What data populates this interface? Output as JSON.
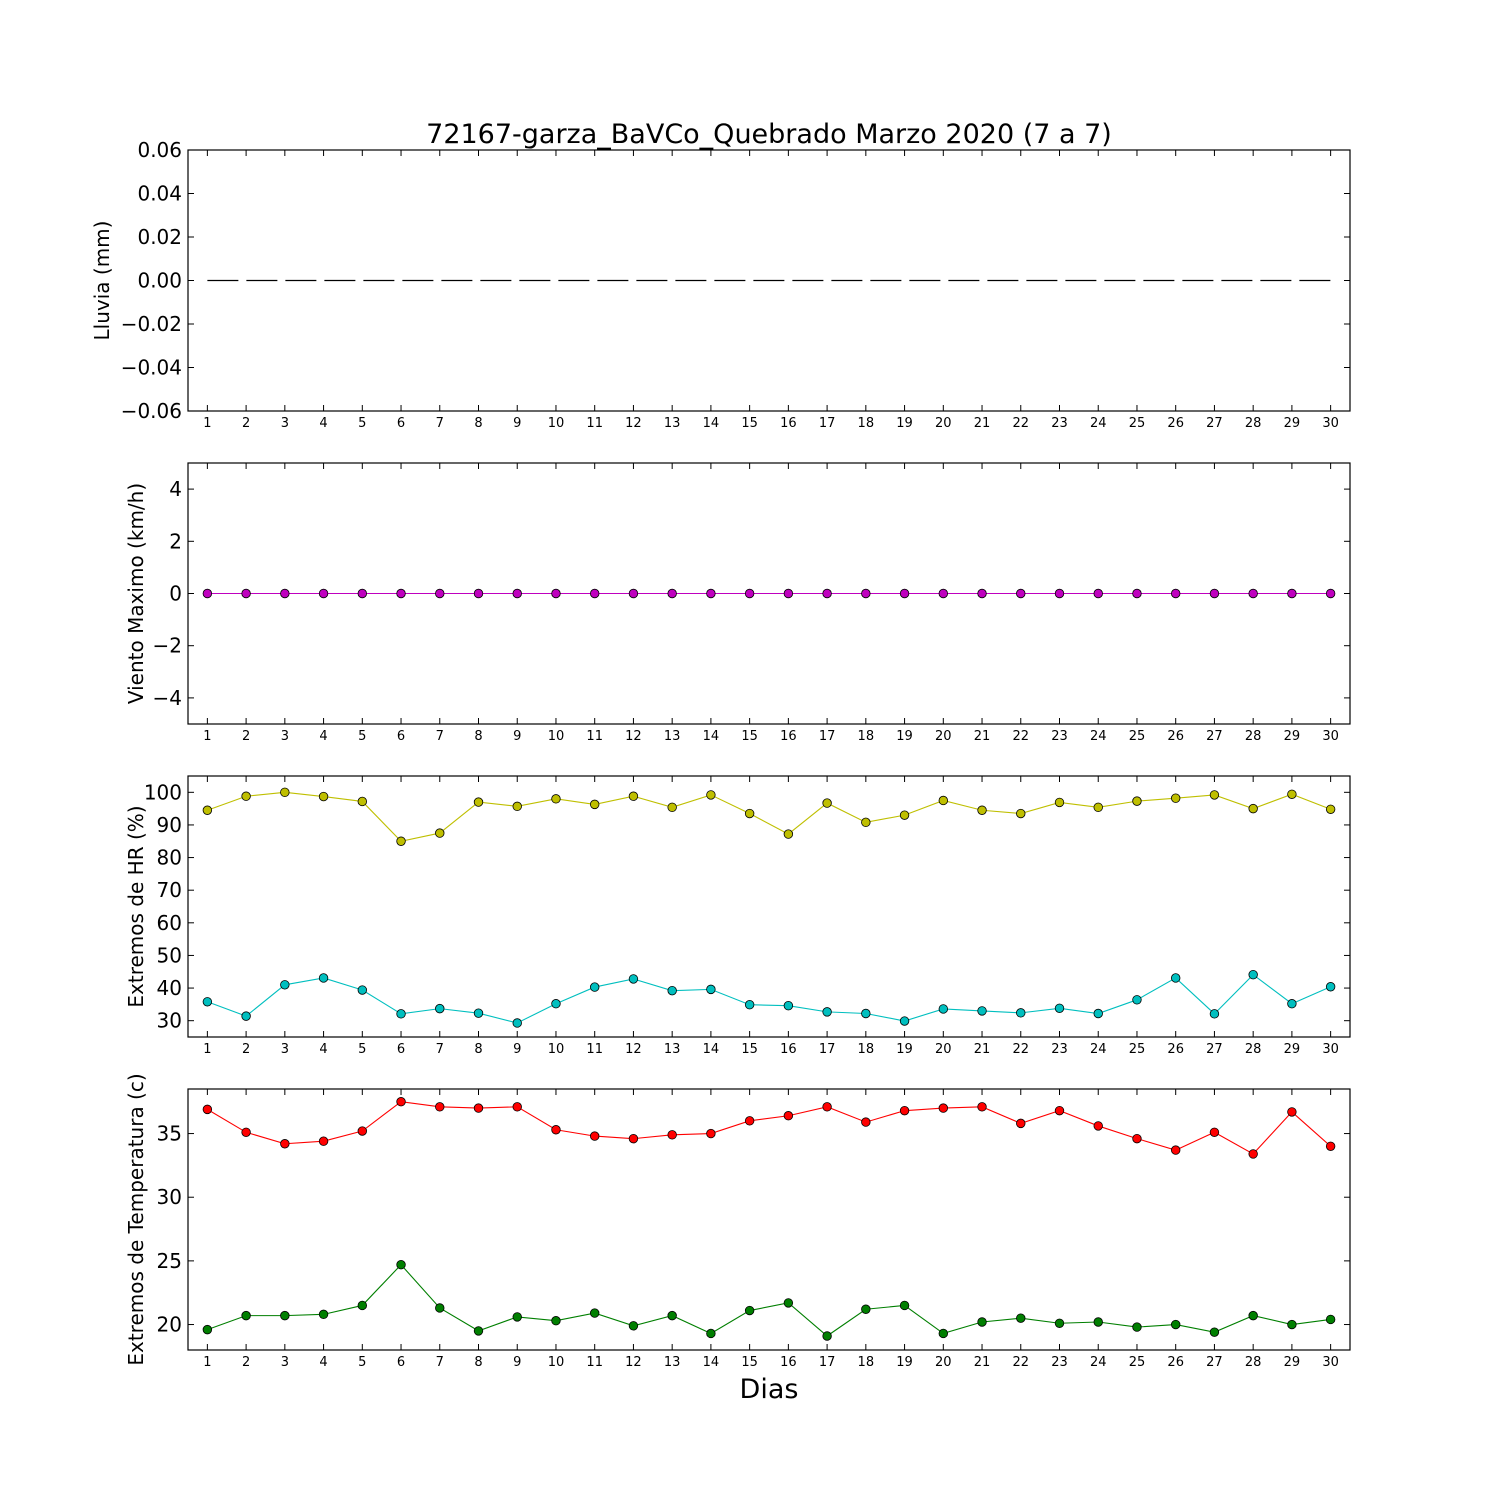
{
  "figure": {
    "title": "72167-garza_BaVCo_Quebrado Marzo 2020  (7 a 7)",
    "xlabel": "Dias"
  },
  "chart_data": [
    {
      "type": "line",
      "ylabel": "Lluvia (mm)",
      "ylim": [
        -0.06,
        0.06
      ],
      "yticks": [
        -0.06,
        -0.04,
        -0.02,
        0.0,
        0.02,
        0.04,
        0.06
      ],
      "ytick_labels": [
        "−0.06",
        "−0.04",
        "−0.02",
        "0.00",
        "0.02",
        "0.04",
        "0.06"
      ],
      "xlim": [
        0.5,
        30.5
      ],
      "x": [
        1,
        2,
        3,
        4,
        5,
        6,
        7,
        8,
        9,
        10,
        11,
        12,
        13,
        14,
        15,
        16,
        17,
        18,
        19,
        20,
        21,
        22,
        23,
        24,
        25,
        26,
        27,
        28,
        29,
        30
      ],
      "series": [
        {
          "style": "dashed",
          "color": "#000000",
          "marker": "none",
          "values": [
            0,
            0,
            0,
            0,
            0,
            0,
            0,
            0,
            0,
            0,
            0,
            0,
            0,
            0,
            0,
            0,
            0,
            0,
            0,
            0,
            0,
            0,
            0,
            0,
            0,
            0,
            0,
            0,
            0,
            0
          ]
        }
      ]
    },
    {
      "type": "line",
      "ylabel": "Viento Maximo (km/h)",
      "ylim": [
        -5,
        5
      ],
      "yticks": [
        -4,
        -2,
        0,
        2,
        4
      ],
      "ytick_labels": [
        "−4",
        "−2",
        "0",
        "2",
        "4"
      ],
      "xlim": [
        0.5,
        30.5
      ],
      "x": [
        1,
        2,
        3,
        4,
        5,
        6,
        7,
        8,
        9,
        10,
        11,
        12,
        13,
        14,
        15,
        16,
        17,
        18,
        19,
        20,
        21,
        22,
        23,
        24,
        25,
        26,
        27,
        28,
        29,
        30
      ],
      "series": [
        {
          "style": "solid",
          "color": "#bf00bf",
          "marker": "circle",
          "values": [
            0,
            0,
            0,
            0,
            0,
            0,
            0,
            0,
            0,
            0,
            0,
            0,
            0,
            0,
            0,
            0,
            0,
            0,
            0,
            0,
            0,
            0,
            0,
            0,
            0,
            0,
            0,
            0,
            0,
            0
          ]
        }
      ]
    },
    {
      "type": "line",
      "ylabel": "Extremos de HR (%)",
      "ylim": [
        25,
        105
      ],
      "yticks": [
        30,
        40,
        50,
        60,
        70,
        80,
        90,
        100
      ],
      "ytick_labels": [
        "30",
        "40",
        "50",
        "60",
        "70",
        "80",
        "90",
        "100"
      ],
      "xlim": [
        0.5,
        30.5
      ],
      "x": [
        1,
        2,
        3,
        4,
        5,
        6,
        7,
        8,
        9,
        10,
        11,
        12,
        13,
        14,
        15,
        16,
        17,
        18,
        19,
        20,
        21,
        22,
        23,
        24,
        25,
        26,
        27,
        28,
        29,
        30
      ],
      "series": [
        {
          "style": "solid",
          "color": "#bfbf00",
          "marker": "circle",
          "values": [
            94.5,
            98.8,
            100,
            98.7,
            97.2,
            85,
            87.5,
            97,
            95.7,
            98,
            96.3,
            98.8,
            95.4,
            99.2,
            93.5,
            87.2,
            96.7,
            90.8,
            93,
            97.5,
            94.5,
            93.5,
            96.9,
            95.4,
            97.3,
            98.2,
            99.2,
            95,
            99.4,
            94.8
          ]
        },
        {
          "style": "solid",
          "color": "#00bfbf",
          "marker": "circle",
          "values": [
            35.8,
            31.4,
            41,
            43.1,
            39.4,
            32.1,
            33.7,
            32.3,
            29.3,
            35.2,
            40.3,
            42.8,
            39.2,
            39.6,
            34.9,
            34.6,
            32.7,
            32.2,
            29.9,
            33.6,
            33,
            32.4,
            33.8,
            32.2,
            36.4,
            43.1,
            32.1,
            44.1,
            35.2,
            40.4
          ]
        }
      ]
    },
    {
      "type": "line",
      "ylabel": "Extremos de Temperatura (c)",
      "ylim": [
        18,
        38.5
      ],
      "yticks": [
        20,
        25,
        30,
        35
      ],
      "ytick_labels": [
        "20",
        "25",
        "30",
        "35"
      ],
      "xlim": [
        0.5,
        30.5
      ],
      "x": [
        1,
        2,
        3,
        4,
        5,
        6,
        7,
        8,
        9,
        10,
        11,
        12,
        13,
        14,
        15,
        16,
        17,
        18,
        19,
        20,
        21,
        22,
        23,
        24,
        25,
        26,
        27,
        28,
        29,
        30
      ],
      "series": [
        {
          "style": "solid",
          "color": "#ff0000",
          "marker": "circle",
          "values": [
            36.9,
            35.1,
            34.2,
            34.4,
            35.2,
            37.5,
            37.1,
            37,
            37.1,
            35.3,
            34.8,
            34.6,
            34.9,
            35,
            36,
            36.4,
            37.1,
            35.9,
            36.8,
            37,
            37.1,
            35.8,
            36.8,
            35.6,
            34.6,
            33.7,
            35.1,
            33.4,
            36.7,
            34
          ]
        },
        {
          "style": "solid",
          "color": "#007f00",
          "marker": "circle",
          "values": [
            19.6,
            20.7,
            20.7,
            20.8,
            21.5,
            24.7,
            21.3,
            19.5,
            20.6,
            20.3,
            20.9,
            19.9,
            20.7,
            19.3,
            21.1,
            21.7,
            19.1,
            21.2,
            21.5,
            19.3,
            20.2,
            20.5,
            20.1,
            20.2,
            19.8,
            20,
            19.4,
            20.7,
            20,
            20.4
          ]
        }
      ]
    }
  ]
}
